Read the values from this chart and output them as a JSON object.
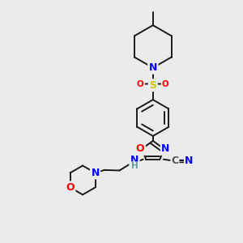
{
  "bg_color": "#ebebeb",
  "bond_color": "#1a1a1a",
  "atom_colors": {
    "N": "#0000ff",
    "O": "#ff0000",
    "S": "#cccc00",
    "C": "#1a1a1a",
    "H": "#5f9ea0",
    "CN_C": "#555555"
  },
  "figsize": [
    3.0,
    3.0
  ],
  "dpi": 100,
  "lw": 1.4,
  "fs": 9.0,
  "fs_small": 7.5
}
